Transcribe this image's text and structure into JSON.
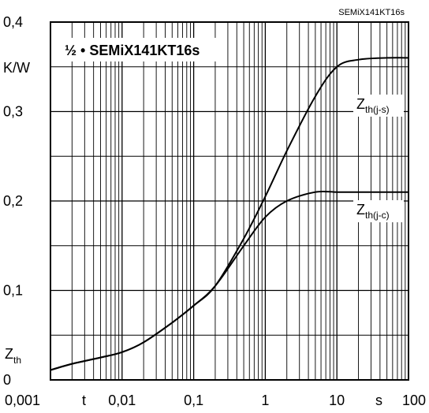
{
  "corner_label": "SEMiX141KT16s",
  "chart_data": {
    "type": "line",
    "title": "½ • SEMiX141KT16s",
    "x_scale": "log",
    "xlim": [
      0.001,
      100
    ],
    "ylim": [
      0,
      0.4
    ],
    "grid": true,
    "xlabel": "t",
    "x_unit": "s",
    "ylabel": "Zth",
    "y_unit": "K/W",
    "x_ticks": [
      "0,001",
      "0,01",
      "0,1",
      "1",
      "10",
      "100"
    ],
    "y_ticks": [
      "0",
      "0,1",
      "0,2",
      "0,3",
      "0,4"
    ],
    "series": [
      {
        "name": "Zth(j-s)",
        "label_main": "Z",
        "label_sub": "th(j-s)",
        "x": [
          0.001,
          0.002,
          0.005,
          0.01,
          0.02,
          0.05,
          0.1,
          0.2,
          0.5,
          1,
          2,
          5,
          10,
          20,
          50,
          100
        ],
        "y": [
          0.011,
          0.018,
          0.025,
          0.031,
          0.042,
          0.064,
          0.083,
          0.105,
          0.158,
          0.205,
          0.256,
          0.317,
          0.35,
          0.358,
          0.36,
          0.36
        ]
      },
      {
        "name": "Zth(j-c)",
        "label_main": "Z",
        "label_sub": "th(j-c)",
        "x": [
          0.001,
          0.002,
          0.005,
          0.01,
          0.02,
          0.05,
          0.1,
          0.2,
          0.5,
          1,
          2,
          5,
          10,
          20,
          50,
          100
        ],
        "y": [
          0.011,
          0.018,
          0.025,
          0.031,
          0.042,
          0.064,
          0.083,
          0.105,
          0.15,
          0.182,
          0.2,
          0.21,
          0.21,
          0.21,
          0.21,
          0.21
        ]
      }
    ]
  }
}
